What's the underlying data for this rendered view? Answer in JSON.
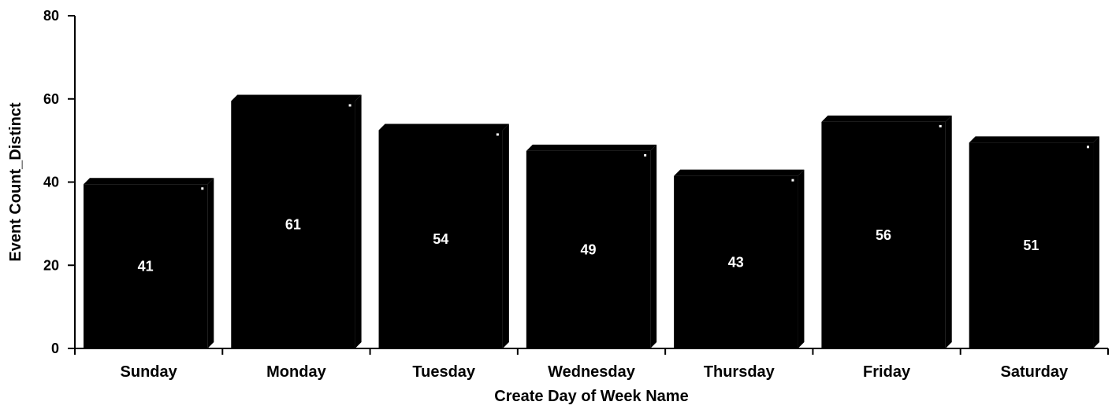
{
  "chart_data": {
    "type": "bar",
    "title": "",
    "xlabel": "Create Day of Week Name",
    "ylabel": "Event Count_Distinct",
    "categories": [
      "Sunday",
      "Monday",
      "Tuesday",
      "Wednesday",
      "Thursday",
      "Friday",
      "Saturday"
    ],
    "values": [
      41,
      61,
      54,
      49,
      43,
      56,
      51
    ],
    "data_labels": [
      "41",
      "61",
      "54",
      "49",
      "43",
      "56",
      "51"
    ],
    "ylim": [
      0,
      80
    ],
    "yticks": [
      0,
      20,
      40,
      60,
      80
    ],
    "grid": false,
    "legend": "none",
    "bar_color": "#000000"
  }
}
